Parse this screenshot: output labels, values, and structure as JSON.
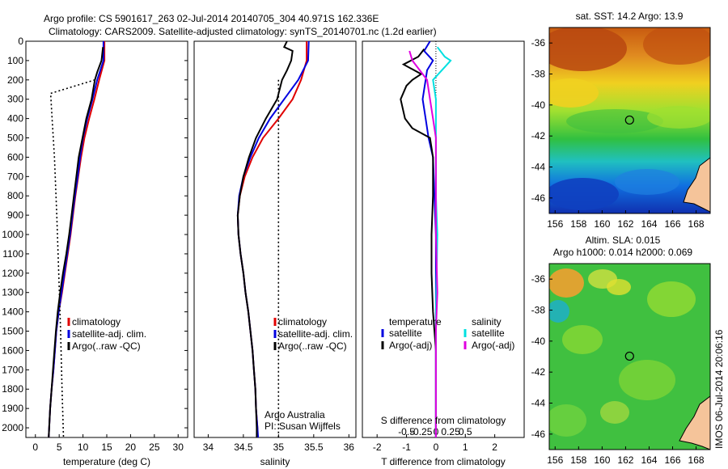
{
  "header": {
    "line1": "Argo profile: CS 5901617_263 02-Jul-2014 20140705_304 40.971S 162.336E",
    "line2": "Climatology: CARS2009. Satellite-adjusted climatology: synTS_20140701.nc (1.2d earlier)"
  },
  "colors": {
    "climatology": "#e00000",
    "satellite": "#0000e0",
    "argo": "#000000",
    "sat_salinity": "#00e0e0",
    "argo_adj_salinity": "#e000e0"
  },
  "watermark": "IMOS 06-Jul-2014 20:06:16",
  "chart_data": [
    {
      "type": "line",
      "id": "temperature",
      "xlabel": "temperature (deg C)",
      "ylabel": "",
      "xlim": [
        -2,
        32
      ],
      "ylim": [
        2050,
        0
      ],
      "x_ticks": [
        "0",
        "5",
        "10",
        "15",
        "20",
        "25",
        "30"
      ],
      "x_tick_values": [
        0,
        5,
        10,
        15,
        20,
        25,
        30
      ],
      "y_ticks": [
        "0",
        "100",
        "200",
        "300",
        "400",
        "500",
        "600",
        "700",
        "800",
        "900",
        "1000",
        "1100",
        "1200",
        "1300",
        "1400",
        "1500",
        "1600",
        "1700",
        "1800",
        "1900",
        "2000"
      ],
      "legend": [
        "climatology",
        "satellite-adj. clim.",
        "Argo(..raw -QC)"
      ],
      "series": [
        {
          "name": "climatology",
          "color": "climatology",
          "dash": "",
          "points": [
            [
              14.5,
              0
            ],
            [
              14.5,
              100
            ],
            [
              13.4,
              200
            ],
            [
              12.4,
              300
            ],
            [
              11.3,
              400
            ],
            [
              10.3,
              500
            ],
            [
              9.6,
              600
            ],
            [
              9,
              700
            ],
            [
              8.4,
              800
            ],
            [
              7.9,
              900
            ],
            [
              7.4,
              1000
            ],
            [
              6.8,
              1100
            ],
            [
              6.2,
              1200
            ],
            [
              5.6,
              1300
            ],
            [
              4.9,
              1400
            ],
            [
              4.4,
              1500
            ],
            [
              4.1,
              1600
            ],
            [
              3.8,
              1700
            ],
            [
              3.4,
              1800
            ],
            [
              3.1,
              1900
            ],
            [
              2.9,
              2000
            ],
            [
              2.8,
              2050
            ]
          ]
        },
        {
          "name": "satellite-adj. clim.",
          "color": "satellite",
          "dash": "",
          "points": [
            [
              14.3,
              0
            ],
            [
              14.3,
              100
            ],
            [
              13,
              200
            ],
            [
              12,
              300
            ],
            [
              10.9,
              400
            ],
            [
              10,
              500
            ],
            [
              9.4,
              600
            ],
            [
              8.9,
              700
            ],
            [
              8.3,
              800
            ],
            [
              7.8,
              900
            ],
            [
              7.3,
              1000
            ],
            [
              6.7,
              1100
            ],
            [
              6.1,
              1200
            ],
            [
              5.5,
              1300
            ],
            [
              4.9,
              1400
            ],
            [
              4.4,
              1500
            ],
            [
              4.1,
              1600
            ],
            [
              3.8,
              1700
            ],
            [
              3.4,
              1800
            ],
            [
              3.1,
              1900
            ],
            [
              2.9,
              2000
            ],
            [
              2.8,
              2050
            ]
          ]
        },
        {
          "name": "Argo(..raw -QC)",
          "color": "argo",
          "dash": "",
          "points": [
            [
              14.2,
              30
            ],
            [
              13.9,
              100
            ],
            [
              13,
              160
            ],
            [
              12.5,
              200
            ],
            [
              11.8,
              300
            ],
            [
              10.7,
              400
            ],
            [
              9.9,
              500
            ],
            [
              9.1,
              600
            ],
            [
              8.6,
              700
            ],
            [
              8.1,
              800
            ],
            [
              7.6,
              900
            ],
            [
              7.1,
              1000
            ],
            [
              6.5,
              1100
            ],
            [
              5.8,
              1200
            ],
            [
              5.2,
              1300
            ],
            [
              4.7,
              1400
            ],
            [
              4.3,
              1500
            ],
            [
              4,
              1600
            ],
            [
              3.7,
              1700
            ],
            [
              3.4,
              1800
            ],
            [
              3.1,
              1900
            ],
            [
              2.9,
              2000
            ],
            [
              2.8,
              2050
            ]
          ]
        },
        {
          "name": "Argo raw",
          "color": "argo",
          "dash": "2 3",
          "points": [
            [
              12.5,
              200
            ],
            [
              3.2,
              270
            ],
            [
              3.5,
              400
            ],
            [
              4,
              600
            ],
            [
              4.5,
              900
            ],
            [
              4.9,
              1200
            ],
            [
              5.3,
              1500
            ],
            [
              5.6,
              1800
            ],
            [
              5.9,
              2050
            ]
          ]
        }
      ]
    },
    {
      "type": "line",
      "id": "salinity",
      "xlabel": "salinity",
      "xlim": [
        33.8,
        36.1
      ],
      "ylim": [
        2050,
        0
      ],
      "x_ticks": [
        "34",
        "34.5",
        "35",
        "35.5",
        "36"
      ],
      "x_tick_values": [
        34,
        34.5,
        35,
        35.5,
        36
      ],
      "legend": [
        "climatology",
        "satellite-adj. clim.",
        "Argo(..raw -QC)"
      ],
      "annotation": [
        "Argo Australia",
        "PI: Susan Wijffels"
      ],
      "series": [
        {
          "name": "climatology",
          "color": "climatology",
          "dash": "",
          "points": [
            [
              35.4,
              0
            ],
            [
              35.4,
              100
            ],
            [
              35.32,
              200
            ],
            [
              35.2,
              300
            ],
            [
              35.0,
              400
            ],
            [
              34.78,
              500
            ],
            [
              34.63,
              600
            ],
            [
              34.52,
              700
            ],
            [
              34.45,
              800
            ],
            [
              34.42,
              900
            ],
            [
              34.43,
              1000
            ],
            [
              34.46,
              1100
            ],
            [
              34.5,
              1200
            ],
            [
              34.53,
              1300
            ],
            [
              34.57,
              1400
            ],
            [
              34.6,
              1500
            ],
            [
              34.63,
              1600
            ],
            [
              34.65,
              1700
            ],
            [
              34.67,
              1800
            ],
            [
              34.68,
              1900
            ],
            [
              34.7,
              2000
            ],
            [
              34.7,
              2050
            ]
          ]
        },
        {
          "name": "satellite-adj. clim.",
          "color": "satellite",
          "dash": "",
          "points": [
            [
              35.43,
              0
            ],
            [
              35.42,
              100
            ],
            [
              35.28,
              200
            ],
            [
              35.08,
              300
            ],
            [
              34.88,
              400
            ],
            [
              34.72,
              500
            ],
            [
              34.6,
              600
            ],
            [
              34.5,
              700
            ],
            [
              34.44,
              800
            ],
            [
              34.42,
              900
            ],
            [
              34.43,
              1000
            ],
            [
              34.46,
              1100
            ],
            [
              34.5,
              1200
            ],
            [
              34.53,
              1300
            ],
            [
              34.57,
              1400
            ],
            [
              34.6,
              1500
            ],
            [
              34.63,
              1600
            ],
            [
              34.65,
              1700
            ],
            [
              34.67,
              1800
            ],
            [
              34.68,
              1900
            ],
            [
              34.7,
              2000
            ],
            [
              34.71,
              2050
            ]
          ]
        },
        {
          "name": "Argo(..raw -QC)",
          "color": "argo",
          "dash": "",
          "points": [
            [
              35.12,
              0
            ],
            [
              35.08,
              30
            ],
            [
              35.2,
              50
            ],
            [
              35.18,
              100
            ],
            [
              35.12,
              150
            ],
            [
              35.05,
              200
            ],
            [
              34.98,
              300
            ],
            [
              34.82,
              400
            ],
            [
              34.68,
              500
            ],
            [
              34.58,
              600
            ],
            [
              34.5,
              700
            ],
            [
              34.45,
              800
            ],
            [
              34.42,
              900
            ],
            [
              34.43,
              1000
            ],
            [
              34.46,
              1100
            ],
            [
              34.5,
              1200
            ],
            [
              34.53,
              1300
            ],
            [
              34.57,
              1400
            ],
            [
              34.6,
              1500
            ],
            [
              34.63,
              1600
            ],
            [
              34.65,
              1700
            ],
            [
              34.67,
              1800
            ],
            [
              34.68,
              1900
            ],
            [
              34.69,
              2000
            ],
            [
              34.69,
              2050
            ]
          ]
        },
        {
          "name": "Argo raw",
          "color": "argo",
          "dash": "2 3",
          "points": [
            [
              35.0,
              200
            ],
            [
              35.0,
              2050
            ]
          ]
        }
      ]
    },
    {
      "type": "line",
      "id": "difference",
      "xlabel": "T difference from climatology",
      "xlabel2": "S difference from climatology",
      "xlim": [
        -2.5,
        3
      ],
      "ylim": [
        2050,
        0
      ],
      "x_ticks": [
        "-2",
        "-1",
        "0",
        "1",
        "2"
      ],
      "x_tick_values": [
        -2,
        -1,
        0,
        1,
        2
      ],
      "x_ticks2": [
        "-0.5",
        "-0.25",
        "0",
        "0.25",
        "0.5"
      ],
      "x_tick_values2": [
        -1,
        -0.5,
        0,
        0.5,
        1
      ],
      "legend_left": [
        "temperature",
        "satellite",
        "Argo(-adj)"
      ],
      "legend_right": [
        "salinity",
        "satellite",
        "Argo(-adj)"
      ],
      "series": [
        {
          "name": "temperature satellite",
          "color": "satellite",
          "dash": "",
          "points": [
            [
              -0.2,
              0
            ],
            [
              -0.4,
              50
            ],
            [
              -0.1,
              100
            ],
            [
              -0.3,
              150
            ],
            [
              -0.35,
              200
            ],
            [
              -0.45,
              300
            ],
            [
              -0.35,
              400
            ],
            [
              -0.25,
              500
            ],
            [
              -0.1,
              600
            ],
            [
              -0.05,
              800
            ],
            [
              0,
              1000
            ],
            [
              0,
              1400
            ],
            [
              0,
              2050
            ]
          ]
        },
        {
          "name": "temperature Argo(-adj)",
          "color": "argo",
          "dash": "",
          "points": [
            [
              -0.4,
              40
            ],
            [
              -0.6,
              80
            ],
            [
              -1.1,
              120
            ],
            [
              -0.5,
              170
            ],
            [
              -0.8,
              200
            ],
            [
              -1.0,
              230
            ],
            [
              -1.2,
              300
            ],
            [
              -1.05,
              400
            ],
            [
              -0.8,
              450
            ],
            [
              -0.2,
              500
            ],
            [
              -0.1,
              600
            ],
            [
              -0.1,
              800
            ],
            [
              -0.15,
              1000
            ],
            [
              -0.15,
              1200
            ],
            [
              -0.1,
              1400
            ],
            [
              -0.05,
              1500
            ],
            [
              0,
              1600
            ],
            [
              0,
              2050
            ]
          ]
        },
        {
          "name": "salinity satellite",
          "color": "sat_salinity",
          "dash": "",
          "points": [
            [
              0.05,
              30
            ],
            [
              0.3,
              80
            ],
            [
              0.5,
              100
            ],
            [
              0.2,
              150
            ],
            [
              -0.1,
              200
            ],
            [
              0,
              300
            ],
            [
              0,
              500
            ],
            [
              0,
              800
            ],
            [
              0.05,
              1000
            ],
            [
              0,
              1400
            ],
            [
              0,
              2050
            ]
          ]
        },
        {
          "name": "salinity Argo(-adj)",
          "color": "argo_adj_salinity",
          "dash": "",
          "points": [
            [
              -0.9,
              50
            ],
            [
              -0.8,
              100
            ],
            [
              -0.3,
              200
            ],
            [
              -0.2,
              300
            ],
            [
              -0.1,
              400
            ],
            [
              0,
              500
            ],
            [
              0,
              1000
            ],
            [
              0.05,
              1300
            ],
            [
              0,
              1500
            ],
            [
              0,
              2050
            ]
          ]
        }
      ]
    },
    {
      "type": "heatmap",
      "id": "sst-map",
      "title": "sat. SST: 14.2  Argo: 13.9",
      "xlim": [
        155.5,
        169.2
      ],
      "ylim": [
        -47,
        -35
      ],
      "x_ticks": [
        "156",
        "158",
        "160",
        "162",
        "164",
        "166",
        "168"
      ],
      "x_tick_values": [
        156,
        158,
        160,
        162,
        164,
        166,
        168
      ],
      "y_ticks": [
        "-36",
        "-38",
        "-40",
        "-42",
        "-44",
        "-46"
      ],
      "y_tick_values": [
        -36,
        -38,
        -40,
        -42,
        -44,
        -46
      ],
      "marker": [
        162.336,
        -40.971
      ]
    },
    {
      "type": "heatmap",
      "id": "sla-map",
      "title": [
        "Altim. SLA: 0.015",
        "Argo h1000: 0.014  h2000: 0.069"
      ],
      "xlim": [
        155.5,
        169.2
      ],
      "ylim": [
        -47,
        -35
      ],
      "x_ticks": [
        "156",
        "158",
        "160",
        "162",
        "164",
        "166",
        "168"
      ],
      "x_tick_values": [
        156,
        158,
        160,
        162,
        164,
        166,
        168
      ],
      "y_ticks": [
        "-36",
        "-38",
        "-40",
        "-42",
        "-44",
        "-46"
      ],
      "y_tick_values": [
        -36,
        -38,
        -40,
        -42,
        -44,
        -46
      ],
      "marker": [
        162.336,
        -40.971
      ]
    }
  ]
}
